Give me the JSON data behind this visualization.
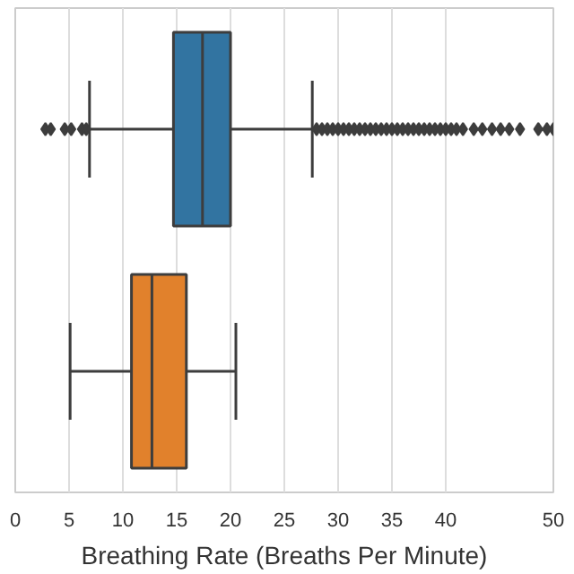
{
  "chart_data": {
    "type": "box",
    "orientation": "horizontal",
    "xlabel": "Breathing Rate (Breaths Per Minute)",
    "categories": [
      null,
      null
    ],
    "colors": [
      "#3274a1",
      "#e1812c"
    ],
    "boxes": [
      {
        "low": 6.9,
        "q1": 14.7,
        "median": 17.4,
        "q3": 20.0,
        "high": 27.6,
        "outliers": [
          2.8,
          3.3,
          4.6,
          5.2,
          6.2,
          6.6,
          28,
          28.5,
          29,
          29.5,
          30,
          30.5,
          31,
          31.5,
          32,
          32.5,
          33,
          33.5,
          34,
          34.5,
          35,
          35.5,
          36,
          36.5,
          37,
          37.5,
          38,
          38.5,
          39,
          39.5,
          40,
          40.5,
          41,
          41.6,
          42.6,
          43.4,
          44.3,
          45.1,
          45.9,
          46.9,
          48.6,
          49.4,
          50
        ]
      },
      {
        "low": 5.1,
        "q1": 10.8,
        "median": 12.7,
        "q3": 15.9,
        "high": 20.5
      }
    ],
    "xlim": [
      0,
      50
    ],
    "xticks": [
      0,
      5,
      10,
      15,
      20,
      25,
      30,
      35,
      40,
      50
    ],
    "grid": "x",
    "tick_labels": "x",
    "marker": "diamond"
  }
}
